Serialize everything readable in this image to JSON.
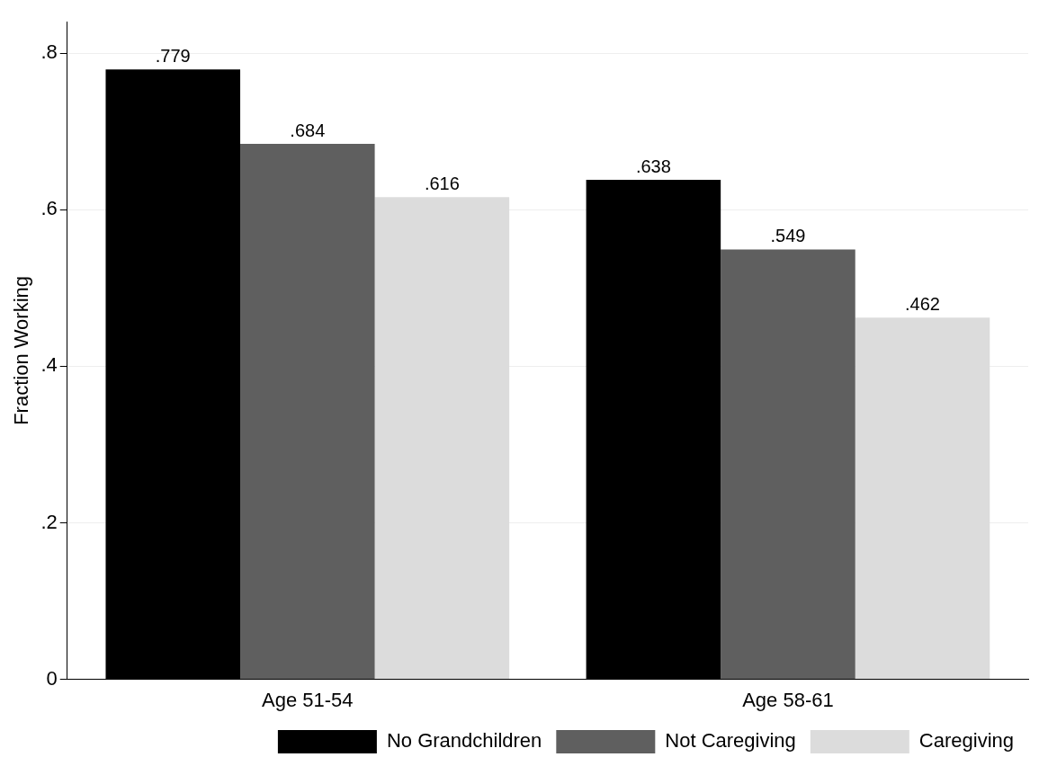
{
  "chart_data": {
    "type": "bar",
    "ylabel": "Fraction Working",
    "categories": [
      "Age 51-54",
      "Age 58-61"
    ],
    "series": [
      {
        "name": "No Grandchildren",
        "color": "#000000",
        "values": [
          0.779,
          0.638
        ]
      },
      {
        "name": "Not Caregiving",
        "color": "#5f5f5f",
        "values": [
          0.684,
          0.549
        ]
      },
      {
        "name": "Caregiving",
        "color": "#dcdcdc",
        "values": [
          0.616,
          0.462
        ]
      }
    ],
    "value_labels": [
      [
        ".779",
        ".638"
      ],
      [
        ".684",
        ".549"
      ],
      [
        ".616",
        ".462"
      ]
    ],
    "ylim": [
      0,
      0.84
    ],
    "yticks": [
      {
        "value": 0,
        "label": "0"
      },
      {
        "value": 0.2,
        "label": ".2"
      },
      {
        "value": 0.4,
        "label": ".4"
      },
      {
        "value": 0.6,
        "label": ".6"
      },
      {
        "value": 0.8,
        "label": ".8"
      }
    ],
    "grid": "y",
    "legend": "bottom right"
  }
}
